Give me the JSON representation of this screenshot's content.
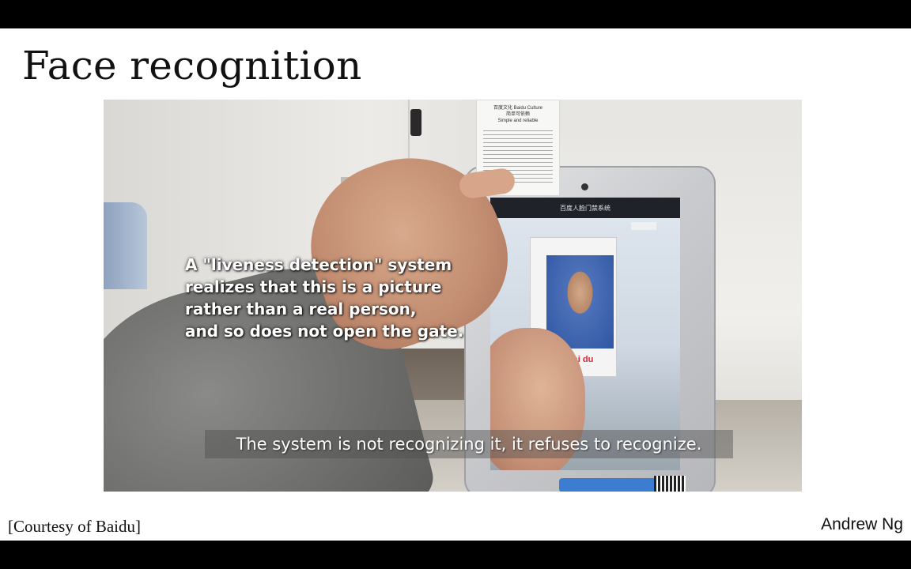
{
  "slide": {
    "title": "Face recognition",
    "credit": "[Courtesy of Baidu]",
    "author": "Andrew Ng"
  },
  "video": {
    "overlay_lines": [
      "A \"liveness detection\" system",
      "realizes that this is a picture",
      "rather than a real person,",
      "and so does not open the gate."
    ],
    "subtitle": "The system is not recognizing it, it refuses to recognize.",
    "card_title": "百度文化 Baidu Culture",
    "card_subtitle": "简单可依赖",
    "card_subtitle_en": "Simple and reliable",
    "tablet_header": "百度人脸门禁系统",
    "badge_logo": "Bai du"
  }
}
